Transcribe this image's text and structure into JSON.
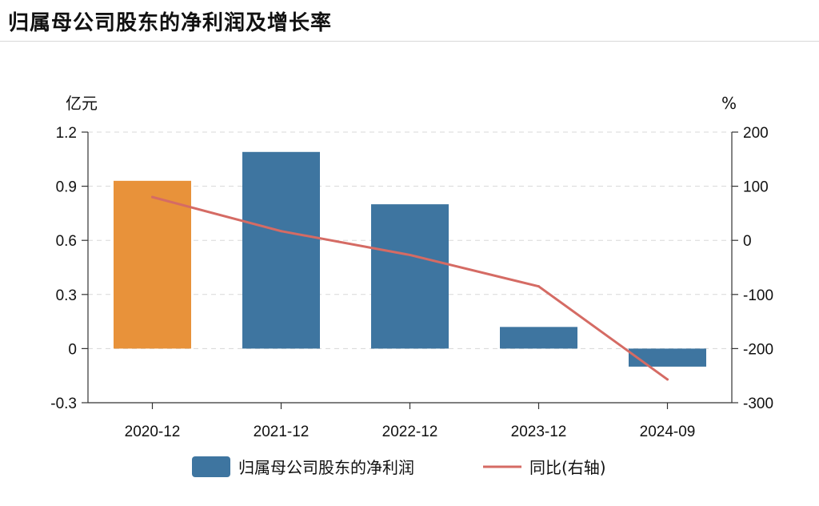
{
  "header": {
    "title": "归属母公司股东的净利润及增长率"
  },
  "chart_data": {
    "type": "bar",
    "categories": [
      "2020-12",
      "2021-12",
      "2022-12",
      "2023-12",
      "2024-09"
    ],
    "series": [
      {
        "name": "归属母公司股东的净利润",
        "axis": "left",
        "kind": "bar",
        "values": [
          0.93,
          1.09,
          0.8,
          0.12,
          -0.1
        ],
        "colors": [
          "#E8923A",
          "#3E75A0",
          "#3E75A0",
          "#3E75A0",
          "#3E75A0"
        ]
      },
      {
        "name": "同比(右轴)",
        "axis": "right",
        "kind": "line",
        "values": [
          80,
          17,
          -27,
          -85,
          -257
        ],
        "color": "#D56B64"
      }
    ],
    "y_left": {
      "unit": "亿元",
      "ylim": [
        -0.3,
        1.2
      ],
      "ticks": [
        1.2,
        0.9,
        0.6,
        0.3,
        0,
        -0.3
      ],
      "tick_labels": [
        "1.2",
        "0.9",
        "0.6",
        "0.3",
        "0",
        "-0.3"
      ]
    },
    "y_right": {
      "unit": "%",
      "ylim": [
        -300,
        200
      ],
      "ticks": [
        200,
        100,
        0,
        -100,
        -200,
        -300
      ],
      "tick_labels": [
        "200",
        "100",
        "0",
        "-100",
        "-200",
        "-300"
      ]
    },
    "grid": true,
    "legend": "bottom"
  }
}
